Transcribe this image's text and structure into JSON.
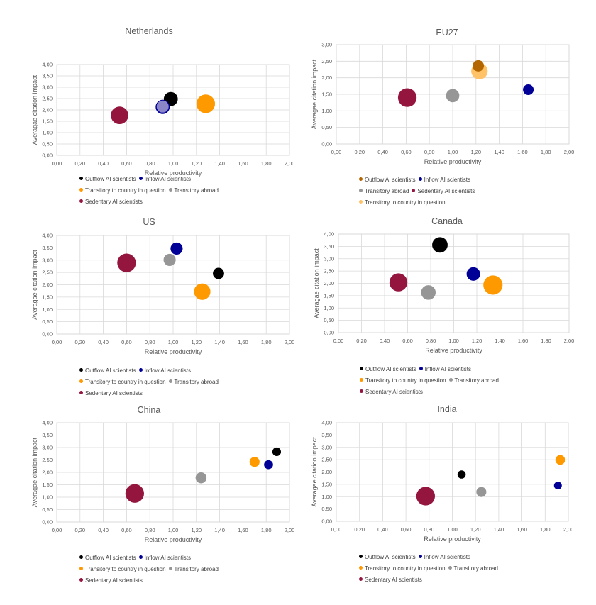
{
  "chart_data": [
    {
      "type": "bubble",
      "title": "Netherlands",
      "xlabel": "Relative productivity",
      "ylabel": "Averagae citation impact",
      "xlim": [
        0,
        2
      ],
      "ylim": [
        0,
        4
      ],
      "x_ticks": [
        "0,00",
        "0,20",
        "0,40",
        "0,60",
        "0,80",
        "1,00",
        "1,20",
        "1,40",
        "1,60",
        "1,80",
        "2,00"
      ],
      "y_ticks": [
        "0,00",
        "0,50",
        "1,00",
        "1,50",
        "2,00",
        "2,50",
        "3,00",
        "3,50",
        "4,00"
      ],
      "points": [
        {
          "series": "Outflow AI scientists",
          "x": 0.98,
          "y": 2.48,
          "size": 3
        },
        {
          "series": "Inflow AI scientists",
          "x": 0.91,
          "y": 2.13,
          "size": 3
        },
        {
          "series": "Transitory abroad",
          "x": 0.91,
          "y": 2.15,
          "size": 2.5
        },
        {
          "series": "Transitory to country in question",
          "x": 1.28,
          "y": 2.27,
          "size": 5
        },
        {
          "series": "Sedentary AI scientists",
          "x": 0.54,
          "y": 1.76,
          "size": 4.5
        }
      ],
      "legend": [
        [
          "Outflow AI scientists",
          "Inflow AI scientists"
        ],
        [
          "Transitory to country in question",
          "Transitory abroad"
        ],
        [
          "Sedentary AI scientists"
        ]
      ]
    },
    {
      "type": "bubble",
      "title": "EU27",
      "xlabel": "Relative productivity",
      "ylabel": "Averagae citation impact",
      "xlim": [
        0,
        2
      ],
      "ylim": [
        0,
        3
      ],
      "x_ticks": [
        "0,00",
        "0,20",
        "0,40",
        "0,60",
        "0,80",
        "1,00",
        "1,20",
        "1,40",
        "1,60",
        "1,80",
        "2,00"
      ],
      "y_ticks": [
        "0,00",
        "0,50",
        "1,00",
        "1,50",
        "2,00",
        "2,50",
        "3,00"
      ],
      "points": [
        {
          "series": "Transitory to country in question",
          "x": 1.23,
          "y": 2.2,
          "size": 4
        },
        {
          "series": "Outflow AI scientists",
          "x": 1.22,
          "y": 2.36,
          "size": 2
        },
        {
          "series": "Inflow AI scientists",
          "x": 1.65,
          "y": 1.64,
          "size": 1.8
        },
        {
          "series": "Transitory abroad",
          "x": 1.0,
          "y": 1.46,
          "size": 2.7
        },
        {
          "series": "Sedentary AI scientists",
          "x": 0.61,
          "y": 1.4,
          "size": 5
        }
      ],
      "legend": [
        [
          "Outflow AI scientists",
          "Inflow AI scientists"
        ],
        [
          "Transitory abroad",
          "Sedentary AI scientists"
        ],
        [
          "Transitory to country in question"
        ]
      ]
    },
    {
      "type": "bubble",
      "title": "US",
      "xlabel": "Relative productivity",
      "ylabel": "Averagae citation impact",
      "xlim": [
        0,
        2
      ],
      "ylim": [
        0,
        4
      ],
      "x_ticks": [
        "0,00",
        "0,20",
        "0,40",
        "0,60",
        "0,80",
        "1,00",
        "1,20",
        "1,40",
        "1,60",
        "1,80",
        "2,00"
      ],
      "y_ticks": [
        "0,00",
        "0,50",
        "1,00",
        "1,50",
        "2,00",
        "2,50",
        "3,00",
        "3,50",
        "4,00"
      ],
      "points": [
        {
          "series": "Outflow AI scientists",
          "x": 1.39,
          "y": 2.46,
          "size": 2
        },
        {
          "series": "Inflow AI scientists",
          "x": 1.03,
          "y": 3.47,
          "size": 2.3
        },
        {
          "series": "Transitory to country in question",
          "x": 1.25,
          "y": 1.72,
          "size": 4
        },
        {
          "series": "Transitory abroad",
          "x": 0.97,
          "y": 3.01,
          "size": 2.3
        },
        {
          "series": "Sedentary AI scientists",
          "x": 0.6,
          "y": 2.89,
          "size": 5
        }
      ],
      "legend": [
        [
          "Outflow AI scientists",
          "Inflow AI scientists"
        ],
        [
          "Transitory to country in question",
          "Transitory abroad"
        ],
        [
          "Sedentary AI scientists"
        ]
      ]
    },
    {
      "type": "bubble",
      "title": "Canada",
      "xlabel": "Relative productivity",
      "ylabel": "Averagae citation impact",
      "xlim": [
        0,
        2
      ],
      "ylim": [
        0,
        4
      ],
      "x_ticks": [
        "0,00",
        "0,20",
        "0,40",
        "0,60",
        "0,80",
        "1,00",
        "1,20",
        "1,40",
        "1,60",
        "1,80",
        "2,00"
      ],
      "y_ticks": [
        "0,00",
        "0,50",
        "1,00",
        "1,50",
        "2,00",
        "2,50",
        "3,00",
        "3,50",
        "4,00"
      ],
      "points": [
        {
          "series": "Outflow AI scientists",
          "x": 0.88,
          "y": 3.56,
          "size": 3.6
        },
        {
          "series": "Inflow AI scientists",
          "x": 1.17,
          "y": 2.38,
          "size": 2.8
        },
        {
          "series": "Transitory to country in question",
          "x": 1.34,
          "y": 1.93,
          "size": 5.3
        },
        {
          "series": "Transitory abroad",
          "x": 0.78,
          "y": 1.63,
          "size": 3.2
        },
        {
          "series": "Sedentary AI scientists",
          "x": 0.52,
          "y": 2.04,
          "size": 4.7
        }
      ],
      "legend": [
        [
          "Outflow AI scientists",
          "Inflow AI scientists"
        ],
        [
          "Transitory to country in question",
          "Transitory abroad"
        ],
        [
          "Sedentary AI scientists"
        ]
      ]
    },
    {
      "type": "bubble",
      "title": "China",
      "xlabel": "Relative productivity",
      "ylabel": "Averagae citation impact",
      "xlim": [
        0,
        2
      ],
      "ylim": [
        0,
        4
      ],
      "x_ticks": [
        "0,00",
        "0,20",
        "0,40",
        "0,60",
        "0,80",
        "1,00",
        "1,20",
        "1,40",
        "1,60",
        "1,80",
        "2,00"
      ],
      "y_ticks": [
        "0,00",
        "0,50",
        "1,00",
        "1,50",
        "2,00",
        "2,50",
        "3,00",
        "3,50",
        "4,00"
      ],
      "points": [
        {
          "series": "Outflow AI scientists",
          "x": 1.89,
          "y": 2.83,
          "size": 1.2
        },
        {
          "series": "Inflow AI scientists",
          "x": 1.82,
          "y": 2.31,
          "size": 1.3
        },
        {
          "series": "Transitory to country in question",
          "x": 1.7,
          "y": 2.42,
          "size": 1.6
        },
        {
          "series": "Transitory abroad",
          "x": 1.24,
          "y": 1.78,
          "size": 1.9
        },
        {
          "series": "Sedentary AI scientists",
          "x": 0.67,
          "y": 1.15,
          "size": 5
        }
      ],
      "legend": [
        [
          "Outflow AI scientists",
          "Inflow AI scientists"
        ],
        [
          "Transitory to country in question",
          "Transitory abroad"
        ],
        [
          "Sedentary AI scientists"
        ]
      ]
    },
    {
      "type": "bubble",
      "title": "India",
      "xlabel": "Relative productivity",
      "ylabel": "Averagae citation impact",
      "xlim": [
        0,
        2
      ],
      "ylim": [
        0,
        4
      ],
      "x_ticks": [
        "0,00",
        "0,20",
        "0,40",
        "0,60",
        "0,80",
        "1,00",
        "1,20",
        "1,40",
        "1,60",
        "1,80",
        "2,00"
      ],
      "y_ticks": [
        "0,00",
        "0,50",
        "1,00",
        "1,50",
        "2,00",
        "2,50",
        "3,00",
        "3,50",
        "4,00"
      ],
      "points": [
        {
          "series": "Outflow AI scientists",
          "x": 1.08,
          "y": 1.9,
          "size": 1.1
        },
        {
          "series": "Inflow AI scientists",
          "x": 1.91,
          "y": 1.45,
          "size": 1.0
        },
        {
          "series": "Transitory to country in question",
          "x": 1.93,
          "y": 2.49,
          "size": 1.5
        },
        {
          "series": "Transitory abroad",
          "x": 1.25,
          "y": 1.19,
          "size": 1.6
        },
        {
          "series": "Sedentary AI scientists",
          "x": 0.77,
          "y": 1.02,
          "size": 5
        }
      ],
      "legend": [
        [
          "Outflow AI scientists",
          "Inflow AI scientists"
        ],
        [
          "Transitory to country in question",
          "Transitory abroad"
        ],
        [
          "Sedentary AI scientists"
        ]
      ]
    }
  ],
  "series_colors": {
    "Outflow AI scientists": "#000000",
    "Inflow AI scientists": "#000096",
    "Transitory to country in question": "#ff9900",
    "Transitory abroad": "#969696",
    "Sedentary AI scientists": "#94163f"
  },
  "series_colors_eu27": {
    "Outflow AI scientists": "#b36600",
    "Transitory to country in question": "#ffc266"
  }
}
